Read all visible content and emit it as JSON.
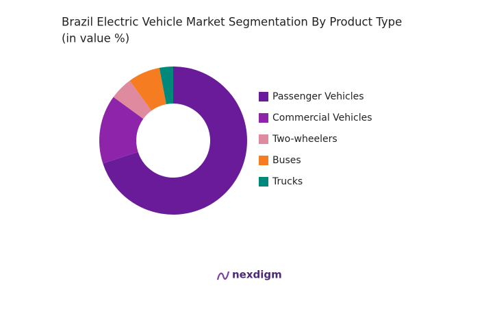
{
  "chart_data": {
    "type": "donut",
    "title": "Brazil Electric Vehicle Market Segmentation By Product Type",
    "subtitle": "(in value %)",
    "categories": [
      "Passenger Vehicles",
      "Commercial Vehicles",
      "Two-wheelers",
      "Buses",
      "Trucks"
    ],
    "values": [
      70,
      15,
      5,
      7,
      3
    ],
    "colors": [
      "#6a1b9a",
      "#8e24aa",
      "#e08aa0",
      "#f57c20",
      "#00897b"
    ],
    "legend": "right"
  },
  "branding": "nexdigm"
}
